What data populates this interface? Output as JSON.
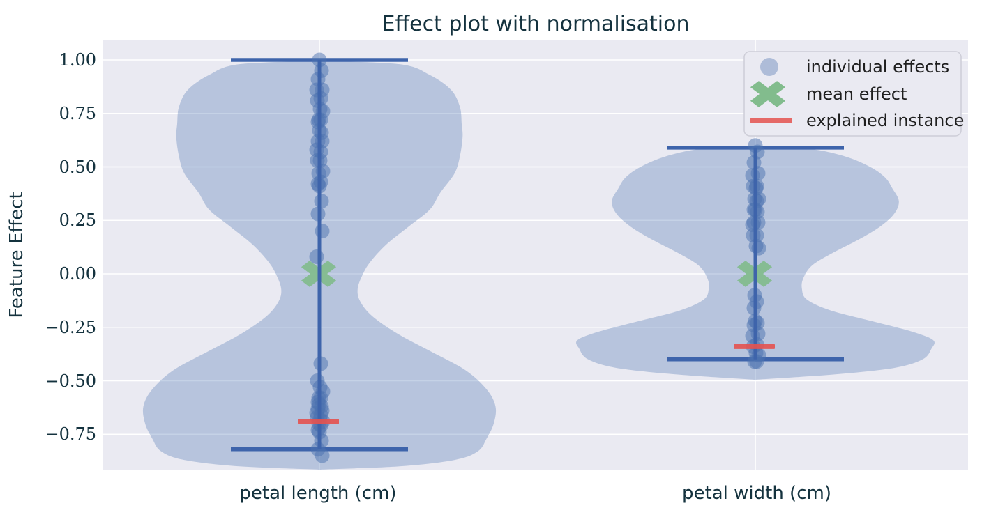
{
  "figure": {
    "title": "Effect plot with normalisation"
  },
  "colors": {
    "figure_bg": "#ffffff",
    "axes_bg": "#eaeaf2",
    "grid": "#ffffff",
    "violin_fill": "#4c72b0",
    "violin_fill_alpha": 0.32,
    "whisker": "#3e64ab",
    "point": "#4c72b0",
    "point_alpha": 0.5,
    "mean_marker": "#82bc8d",
    "explained_marker": "#e4524f",
    "title_text": "#14323e",
    "tick_text": "#14323e",
    "legend_text": "#1f1f1f",
    "legend_bg": "#eaeaf2",
    "legend_border": "#cdcdd7"
  },
  "chart_data": {
    "type": "violin",
    "title": "Effect plot with normalisation",
    "ylabel": "Feature Effect",
    "xlabel": "",
    "categories": [
      "petal length (cm)",
      "petal width (cm)"
    ],
    "yticks": [
      1.0,
      0.75,
      0.5,
      0.25,
      0.0,
      -0.25,
      -0.5,
      -0.75
    ],
    "ytick_labels": [
      "1.00",
      "0.75",
      "0.50",
      "0.25",
      "0.00",
      "−0.25",
      "−0.50",
      "−0.75"
    ],
    "ylim": [
      -0.93,
      1.1
    ],
    "grid": true,
    "legend": {
      "position": "upper right",
      "entries": [
        {
          "label": "individual effects",
          "marker": "circle",
          "color": "#aebcd8"
        },
        {
          "label": "mean effect",
          "marker": "X",
          "color": "#82bc8d"
        },
        {
          "label": "explained instance",
          "marker": "line",
          "color": "#e4524f"
        }
      ]
    },
    "series": [
      {
        "category": "petal length (cm)",
        "mean_effect": 0.0,
        "explained_instance_effect": -0.69,
        "whisker_range": [
          -0.82,
          1.0
        ],
        "individual_effects": [
          1.0,
          0.95,
          0.91,
          0.86,
          0.86,
          0.82,
          0.81,
          0.77,
          0.76,
          0.72,
          0.72,
          0.71,
          0.67,
          0.66,
          0.62,
          0.62,
          0.58,
          0.57,
          0.53,
          0.53,
          0.48,
          0.47,
          0.43,
          0.42,
          0.41,
          0.34,
          0.28,
          0.2,
          0.08,
          -0.42,
          -0.5,
          -0.53,
          -0.55,
          -0.58,
          -0.58,
          -0.6,
          -0.61,
          -0.62,
          -0.63,
          -0.64,
          -0.65,
          -0.66,
          -0.67,
          -0.68,
          -0.69,
          -0.7,
          -0.71,
          -0.73,
          -0.74,
          -0.78,
          -0.82,
          -0.85
        ],
        "violin_density_profile": [
          [
            0.995,
            0.0
          ],
          [
            0.98,
            0.45
          ],
          [
            0.93,
            0.62
          ],
          [
            0.86,
            0.74
          ],
          [
            0.78,
            0.79
          ],
          [
            0.7,
            0.8
          ],
          [
            0.64,
            0.805
          ],
          [
            0.55,
            0.79
          ],
          [
            0.47,
            0.76
          ],
          [
            0.38,
            0.68
          ],
          [
            0.3,
            0.62
          ],
          [
            0.22,
            0.5
          ],
          [
            0.14,
            0.38
          ],
          [
            0.06,
            0.29
          ],
          [
            0.0,
            0.245
          ],
          [
            -0.07,
            0.215
          ],
          [
            -0.13,
            0.23
          ],
          [
            -0.2,
            0.3
          ],
          [
            -0.28,
            0.44
          ],
          [
            -0.36,
            0.62
          ],
          [
            -0.45,
            0.82
          ],
          [
            -0.54,
            0.94
          ],
          [
            -0.62,
            0.99
          ],
          [
            -0.7,
            0.98
          ],
          [
            -0.77,
            0.94
          ],
          [
            -0.83,
            0.89
          ],
          [
            -0.87,
            0.76
          ],
          [
            -0.9,
            0.45
          ],
          [
            -0.915,
            0.0
          ]
        ]
      },
      {
        "category": "petal width (cm)",
        "mean_effect": 0.0,
        "explained_instance_effect": -0.34,
        "whisker_range": [
          -0.4,
          0.59
        ],
        "individual_effects": [
          0.6,
          0.57,
          0.52,
          0.47,
          0.46,
          0.41,
          0.41,
          0.4,
          0.35,
          0.35,
          0.34,
          0.3,
          0.3,
          0.29,
          0.24,
          0.24,
          0.23,
          0.18,
          0.18,
          0.13,
          0.12,
          -0.1,
          -0.13,
          -0.16,
          -0.22,
          -0.23,
          -0.24,
          -0.28,
          -0.29,
          -0.33,
          -0.34,
          -0.37,
          -0.38,
          -0.41,
          -0.41
        ],
        "violin_density_profile": [
          [
            0.6,
            0.0
          ],
          [
            0.585,
            0.3
          ],
          [
            0.55,
            0.5
          ],
          [
            0.5,
            0.645
          ],
          [
            0.45,
            0.73
          ],
          [
            0.4,
            0.77
          ],
          [
            0.34,
            0.807
          ],
          [
            0.28,
            0.78
          ],
          [
            0.22,
            0.7
          ],
          [
            0.16,
            0.58
          ],
          [
            0.1,
            0.44
          ],
          [
            0.04,
            0.32
          ],
          [
            -0.02,
            0.27
          ],
          [
            -0.07,
            0.262
          ],
          [
            -0.12,
            0.29
          ],
          [
            -0.17,
            0.42
          ],
          [
            -0.22,
            0.65
          ],
          [
            -0.27,
            0.88
          ],
          [
            -0.31,
            1.0
          ],
          [
            -0.35,
            0.99
          ],
          [
            -0.4,
            0.94
          ],
          [
            -0.44,
            0.78
          ],
          [
            -0.47,
            0.45
          ],
          [
            -0.495,
            0.0
          ]
        ]
      }
    ]
  }
}
